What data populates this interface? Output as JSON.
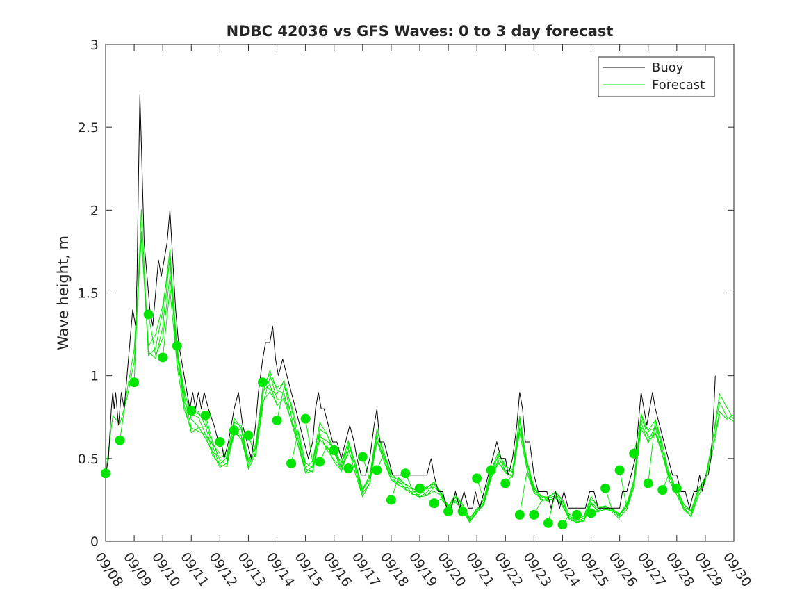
{
  "chart_data": {
    "type": "line",
    "title": "NDBC 42036 vs GFS Waves: 0 to 3 day forecast",
    "xlabel": "",
    "ylabel": "Wave height, m",
    "xlim": [
      0,
      22
    ],
    "ylim": [
      0,
      3
    ],
    "x_unit": "days since 09/08",
    "categories": [
      "09/08",
      "09/09",
      "09/10",
      "09/11",
      "09/12",
      "09/13",
      "09/14",
      "09/15",
      "09/16",
      "09/17",
      "09/18",
      "09/19",
      "09/20",
      "09/21",
      "09/22",
      "09/23",
      "09/24",
      "09/25",
      "09/26",
      "09/27",
      "09/28",
      "09/29",
      "09/30"
    ],
    "yticks": [
      "0",
      "0.5",
      "1",
      "1.5",
      "2",
      "2.5",
      "3"
    ],
    "legend_position": "top-right",
    "series": [
      {
        "name": "Buoy",
        "color": "#000000",
        "points": [
          [
            0.0,
            0.4
          ],
          [
            0.1,
            0.5
          ],
          [
            0.2,
            0.8
          ],
          [
            0.25,
            0.9
          ],
          [
            0.3,
            0.8
          ],
          [
            0.35,
            0.9
          ],
          [
            0.45,
            0.7
          ],
          [
            0.55,
            0.9
          ],
          [
            0.65,
            0.8
          ],
          [
            0.75,
            1.0
          ],
          [
            0.85,
            1.2
          ],
          [
            0.95,
            1.4
          ],
          [
            1.05,
            1.3
          ],
          [
            1.1,
            1.6
          ],
          [
            1.15,
            2.2
          ],
          [
            1.2,
            2.7
          ],
          [
            1.25,
            2.4
          ],
          [
            1.3,
            2.1
          ],
          [
            1.35,
            1.8
          ],
          [
            1.45,
            1.6
          ],
          [
            1.55,
            1.4
          ],
          [
            1.65,
            1.3
          ],
          [
            1.75,
            1.5
          ],
          [
            1.85,
            1.7
          ],
          [
            1.95,
            1.6
          ],
          [
            2.05,
            1.7
          ],
          [
            2.15,
            1.8
          ],
          [
            2.25,
            2.0
          ],
          [
            2.35,
            1.7
          ],
          [
            2.45,
            1.4
          ],
          [
            2.55,
            1.2
          ],
          [
            2.65,
            1.1
          ],
          [
            2.75,
            1.0
          ],
          [
            2.85,
            0.9
          ],
          [
            2.95,
            0.8
          ],
          [
            3.05,
            0.9
          ],
          [
            3.15,
            0.8
          ],
          [
            3.25,
            0.9
          ],
          [
            3.35,
            0.8
          ],
          [
            3.45,
            0.9
          ],
          [
            3.6,
            0.8
          ],
          [
            3.8,
            0.7
          ],
          [
            3.95,
            0.6
          ],
          [
            4.05,
            0.6
          ],
          [
            4.15,
            0.5
          ],
          [
            4.3,
            0.6
          ],
          [
            4.5,
            0.8
          ],
          [
            4.65,
            0.9
          ],
          [
            4.8,
            0.7
          ],
          [
            4.95,
            0.6
          ],
          [
            5.1,
            0.5
          ],
          [
            5.25,
            0.7
          ],
          [
            5.35,
            0.9
          ],
          [
            5.5,
            1.1
          ],
          [
            5.6,
            1.2
          ],
          [
            5.75,
            1.2
          ],
          [
            5.85,
            1.3
          ],
          [
            5.95,
            1.1
          ],
          [
            6.05,
            1.0
          ],
          [
            6.2,
            1.1
          ],
          [
            6.35,
            1.0
          ],
          [
            6.5,
            0.9
          ],
          [
            6.65,
            0.8
          ],
          [
            6.8,
            0.7
          ],
          [
            6.95,
            0.6
          ],
          [
            7.1,
            0.5
          ],
          [
            7.25,
            0.6
          ],
          [
            7.35,
            0.8
          ],
          [
            7.45,
            0.9
          ],
          [
            7.55,
            0.8
          ],
          [
            7.65,
            0.8
          ],
          [
            7.8,
            0.7
          ],
          [
            7.95,
            0.6
          ],
          [
            8.1,
            0.6
          ],
          [
            8.25,
            0.5
          ],
          [
            8.4,
            0.6
          ],
          [
            8.55,
            0.7
          ],
          [
            8.7,
            0.6
          ],
          [
            8.8,
            0.5
          ],
          [
            8.95,
            0.4
          ],
          [
            9.1,
            0.4
          ],
          [
            9.25,
            0.5
          ],
          [
            9.4,
            0.7
          ],
          [
            9.5,
            0.8
          ],
          [
            9.6,
            0.6
          ],
          [
            9.75,
            0.6
          ],
          [
            9.9,
            0.5
          ],
          [
            10.05,
            0.4
          ],
          [
            10.2,
            0.4
          ],
          [
            10.35,
            0.4
          ],
          [
            10.5,
            0.4
          ],
          [
            10.65,
            0.4
          ],
          [
            10.8,
            0.4
          ],
          [
            10.95,
            0.4
          ],
          [
            11.05,
            0.4
          ],
          [
            11.15,
            0.4
          ],
          [
            11.25,
            0.4
          ],
          [
            11.4,
            0.5
          ],
          [
            11.5,
            0.4
          ],
          [
            11.65,
            0.3
          ],
          [
            11.8,
            0.3
          ],
          [
            11.95,
            0.2
          ],
          [
            12.1,
            0.2
          ],
          [
            12.25,
            0.3
          ],
          [
            12.4,
            0.2
          ],
          [
            12.55,
            0.3
          ],
          [
            12.7,
            0.2
          ],
          [
            12.85,
            0.2
          ],
          [
            12.95,
            0.3
          ],
          [
            13.1,
            0.2
          ],
          [
            13.25,
            0.3
          ],
          [
            13.4,
            0.4
          ],
          [
            13.55,
            0.5
          ],
          [
            13.7,
            0.6
          ],
          [
            13.85,
            0.5
          ],
          [
            14.0,
            0.5
          ],
          [
            14.1,
            0.4
          ],
          [
            14.25,
            0.5
          ],
          [
            14.4,
            0.7
          ],
          [
            14.5,
            0.9
          ],
          [
            14.6,
            0.8
          ],
          [
            14.7,
            0.6
          ],
          [
            14.85,
            0.6
          ],
          [
            15.0,
            0.4
          ],
          [
            15.15,
            0.3
          ],
          [
            15.3,
            0.3
          ],
          [
            15.45,
            0.3
          ],
          [
            15.6,
            0.2
          ],
          [
            15.75,
            0.3
          ],
          [
            15.9,
            0.2
          ],
          [
            16.05,
            0.3
          ],
          [
            16.2,
            0.2
          ],
          [
            16.35,
            0.2
          ],
          [
            16.5,
            0.2
          ],
          [
            16.65,
            0.2
          ],
          [
            16.8,
            0.2
          ],
          [
            16.95,
            0.3
          ],
          [
            17.1,
            0.3
          ],
          [
            17.25,
            0.2
          ],
          [
            17.4,
            0.2
          ],
          [
            17.55,
            0.2
          ],
          [
            17.7,
            0.2
          ],
          [
            17.85,
            0.2
          ],
          [
            18.0,
            0.2
          ],
          [
            18.1,
            0.3
          ],
          [
            18.25,
            0.3
          ],
          [
            18.4,
            0.4
          ],
          [
            18.55,
            0.5
          ],
          [
            18.65,
            0.7
          ],
          [
            18.75,
            0.9
          ],
          [
            18.85,
            0.8
          ],
          [
            18.95,
            0.7
          ],
          [
            19.05,
            0.8
          ],
          [
            19.15,
            0.9
          ],
          [
            19.25,
            0.8
          ],
          [
            19.4,
            0.7
          ],
          [
            19.55,
            0.6
          ],
          [
            19.7,
            0.5
          ],
          [
            19.85,
            0.4
          ],
          [
            20.0,
            0.4
          ],
          [
            20.15,
            0.3
          ],
          [
            20.3,
            0.3
          ],
          [
            20.45,
            0.2
          ],
          [
            20.6,
            0.3
          ],
          [
            20.7,
            0.3
          ],
          [
            20.8,
            0.4
          ],
          [
            20.9,
            0.3
          ],
          [
            21.0,
            0.4
          ],
          [
            21.1,
            0.4
          ],
          [
            21.2,
            0.5
          ],
          [
            21.3,
            0.8
          ],
          [
            21.35,
            1.0
          ]
        ]
      },
      {
        "name": "Forecast",
        "color": "#00e600",
        "points": [
          [
            0.0,
            0.41
          ],
          [
            0.5,
            0.61
          ],
          [
            1.0,
            0.96
          ],
          [
            1.5,
            1.37
          ],
          [
            2.0,
            1.11
          ],
          [
            2.5,
            1.18
          ],
          [
            3.0,
            0.79
          ],
          [
            3.5,
            0.76
          ],
          [
            4.0,
            0.6
          ],
          [
            4.5,
            0.67
          ],
          [
            5.0,
            0.64
          ],
          [
            5.5,
            0.96
          ],
          [
            6.0,
            0.73
          ],
          [
            6.5,
            0.47
          ],
          [
            7.0,
            0.74
          ],
          [
            7.5,
            0.48
          ],
          [
            8.0,
            0.55
          ],
          [
            8.5,
            0.44
          ],
          [
            9.0,
            0.51
          ],
          [
            9.5,
            0.43
          ],
          [
            10.0,
            0.25
          ],
          [
            10.5,
            0.41
          ],
          [
            11.0,
            0.32
          ],
          [
            11.5,
            0.23
          ],
          [
            12.0,
            0.18
          ],
          [
            12.5,
            0.18
          ],
          [
            13.0,
            0.38
          ],
          [
            13.5,
            0.43
          ],
          [
            14.0,
            0.35
          ],
          [
            14.5,
            0.16
          ],
          [
            15.0,
            0.16
          ],
          [
            15.5,
            0.11
          ],
          [
            16.0,
            0.1
          ],
          [
            16.5,
            0.16
          ],
          [
            17.0,
            0.17
          ],
          [
            17.5,
            0.32
          ],
          [
            18.0,
            0.43
          ],
          [
            18.5,
            0.53
          ],
          [
            19.0,
            0.35
          ],
          [
            19.5,
            0.31
          ],
          [
            20.0,
            0.32
          ]
        ]
      }
    ]
  }
}
